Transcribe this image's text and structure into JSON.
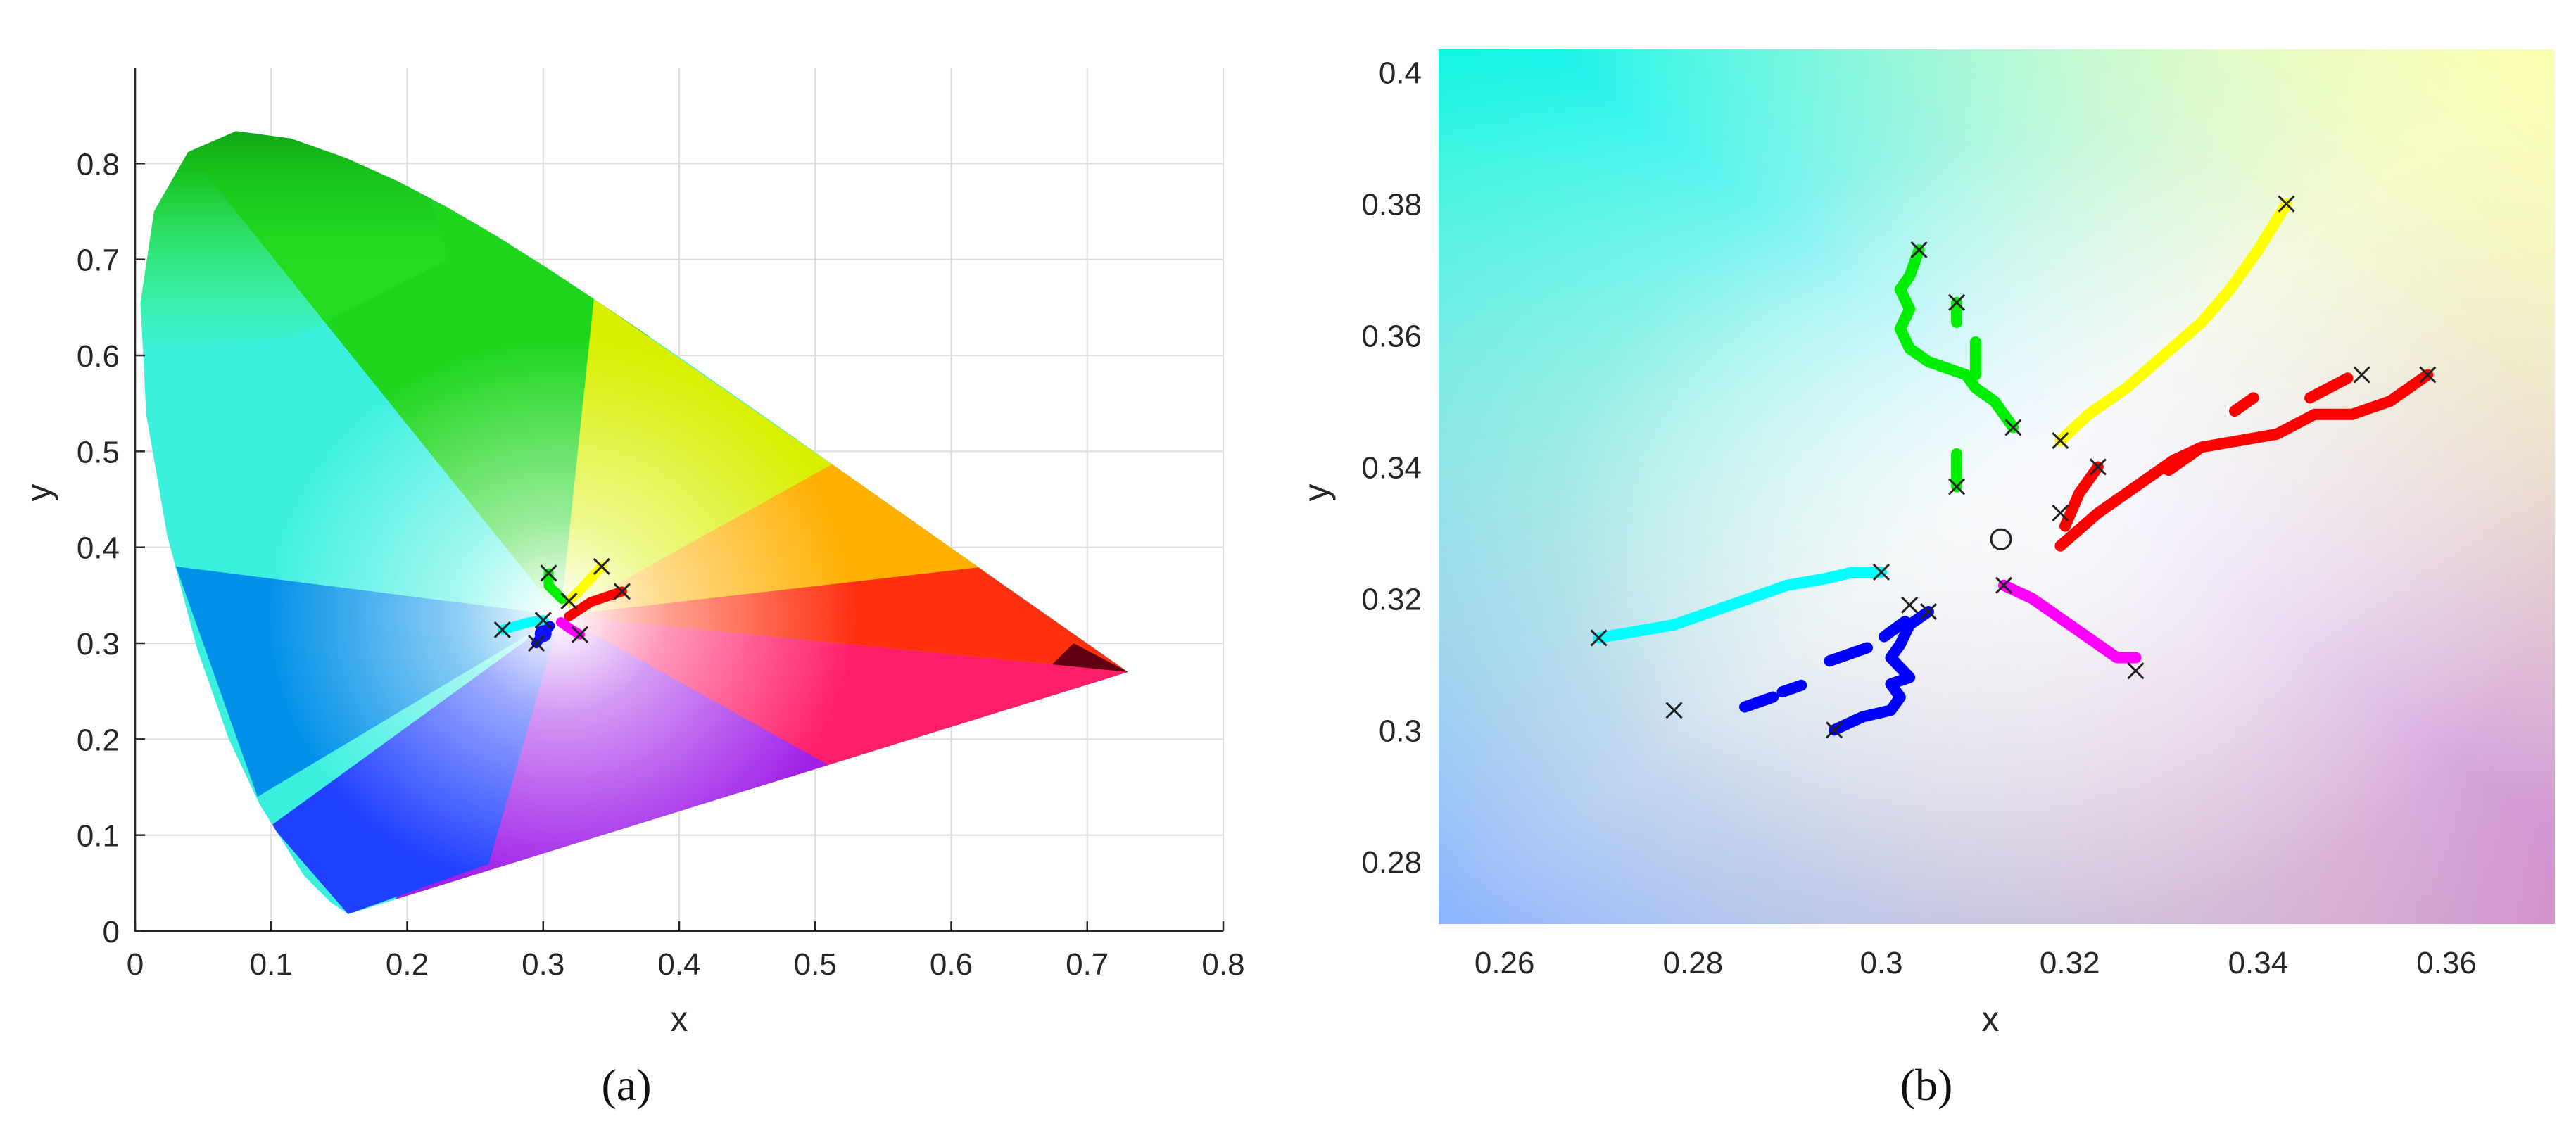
{
  "chart_data": [
    {
      "type": "scatter",
      "panel_label": "(a)",
      "xlabel": "x",
      "ylabel": "y",
      "xlim": [
        0,
        0.8
      ],
      "ylim": [
        0,
        0.9
      ],
      "xticks": [
        "0",
        "0.1",
        "0.2",
        "0.3",
        "0.4",
        "0.5",
        "0.6",
        "0.7",
        "0.8"
      ],
      "yticks": [
        "0",
        "0.1",
        "0.2",
        "0.3",
        "0.4",
        "0.5",
        "0.6",
        "0.7",
        "0.8"
      ],
      "grid": true,
      "background": "CIE 1931 chromaticity diagram (gamut fill)",
      "gamut_boundary": [
        [
          0.1566,
          0.0177
        ],
        [
          0.144,
          0.0297
        ],
        [
          0.1241,
          0.0578
        ],
        [
          0.0913,
          0.1327
        ],
        [
          0.0687,
          0.2007
        ],
        [
          0.0454,
          0.295
        ],
        [
          0.0235,
          0.4127
        ],
        [
          0.0082,
          0.5384
        ],
        [
          0.0039,
          0.6548
        ],
        [
          0.0139,
          0.7502
        ],
        [
          0.0389,
          0.812
        ],
        [
          0.0743,
          0.8338
        ],
        [
          0.1142,
          0.8262
        ],
        [
          0.1547,
          0.8059
        ],
        [
          0.1929,
          0.7816
        ],
        [
          0.2296,
          0.7543
        ],
        [
          0.2658,
          0.7243
        ],
        [
          0.3016,
          0.6923
        ],
        [
          0.3373,
          0.6589
        ],
        [
          0.3731,
          0.6245
        ],
        [
          0.4087,
          0.5896
        ],
        [
          0.4441,
          0.5547
        ],
        [
          0.4788,
          0.5202
        ],
        [
          0.5125,
          0.4866
        ],
        [
          0.5448,
          0.4544
        ],
        [
          0.5752,
          0.4242
        ],
        [
          0.6029,
          0.3965
        ],
        [
          0.627,
          0.3725
        ],
        [
          0.6482,
          0.3514
        ],
        [
          0.6658,
          0.334
        ],
        [
          0.6801,
          0.3197
        ],
        [
          0.6915,
          0.3083
        ],
        [
          0.7006,
          0.2993
        ],
        [
          0.7079,
          0.292
        ],
        [
          0.714,
          0.2859
        ],
        [
          0.719,
          0.2809
        ],
        [
          0.723,
          0.277
        ],
        [
          0.726,
          0.274
        ],
        [
          0.7283,
          0.2717
        ],
        [
          0.73,
          0.27
        ]
      ],
      "series": [
        {
          "color": "#ffff00",
          "points": [
            [
              0.319,
              0.344
            ],
            [
              0.33,
              0.36
            ],
            [
              0.343,
              0.38
            ]
          ]
        },
        {
          "color": "#ff0000",
          "points": [
            [
              0.319,
              0.328
            ],
            [
              0.335,
              0.343
            ],
            [
              0.358,
              0.354
            ]
          ]
        },
        {
          "color": "#00ee00",
          "points": [
            [
              0.304,
              0.373
            ],
            [
              0.304,
              0.36
            ],
            [
              0.314,
              0.346
            ]
          ]
        },
        {
          "color": "#00ffff",
          "points": [
            [
              0.27,
              0.314
            ],
            [
              0.29,
              0.322
            ],
            [
              0.3,
              0.324
            ]
          ]
        },
        {
          "color": "#0000ff",
          "points": [
            [
              0.295,
              0.3
            ],
            [
              0.3,
              0.31
            ],
            [
              0.305,
              0.318
            ]
          ]
        },
        {
          "color": "#ff00ff",
          "points": [
            [
              0.313,
              0.322
            ],
            [
              0.322,
              0.313
            ],
            [
              0.327,
              0.309
            ]
          ]
        }
      ],
      "markers": [
        [
          0.304,
          0.373
        ],
        [
          0.343,
          0.38
        ],
        [
          0.358,
          0.354
        ],
        [
          0.27,
          0.314
        ],
        [
          0.295,
          0.3
        ],
        [
          0.327,
          0.309
        ],
        [
          0.3,
          0.324
        ],
        [
          0.319,
          0.344
        ]
      ],
      "blue_dot": [
        0.3,
        0.31
      ]
    },
    {
      "type": "line",
      "panel_label": "(b)",
      "xlabel": "x",
      "ylabel": "y",
      "xlim": [
        0.253,
        0.3715
      ],
      "ylim": [
        0.2705,
        0.4035
      ],
      "xticks": [
        "0.26",
        "0.28",
        "0.3",
        "0.32",
        "0.34",
        "0.36"
      ],
      "xtick_values": [
        0.26,
        0.28,
        0.3,
        0.32,
        0.34,
        0.36
      ],
      "yticks": [
        "0.28",
        "0.3",
        "0.32",
        "0.34",
        "0.36",
        "0.38",
        "0.4"
      ],
      "ytick_values": [
        0.28,
        0.3,
        0.32,
        0.34,
        0.36,
        0.38,
        0.4
      ],
      "grid": false,
      "background": "chromaticity color field",
      "white_point": [
        0.3127,
        0.329
      ],
      "series": [
        {
          "color": "#ffff00",
          "segments": [
            [
              [
                0.319,
                0.344
              ],
              [
                0.322,
                0.348
              ],
              [
                0.326,
                0.352
              ],
              [
                0.33,
                0.357
              ],
              [
                0.334,
                0.362
              ],
              [
                0.337,
                0.367
              ],
              [
                0.34,
                0.373
              ],
              [
                0.343,
                0.38
              ]
            ]
          ]
        },
        {
          "color": "#ff0000",
          "segments": [
            [
              [
                0.319,
                0.328
              ],
              [
                0.323,
                0.333
              ],
              [
                0.327,
                0.337
              ],
              [
                0.331,
                0.341
              ],
              [
                0.334,
                0.343
              ],
              [
                0.338,
                0.344
              ],
              [
                0.342,
                0.345
              ],
              [
                0.346,
                0.348
              ],
              [
                0.35,
                0.348
              ],
              [
                0.354,
                0.35
              ],
              [
                0.358,
                0.354
              ]
            ],
            [
              [
                0.3195,
                0.331
              ],
              [
                0.321,
                0.336
              ],
              [
                0.323,
                0.34
              ]
            ],
            [
              [
                0.3305,
                0.3395
              ],
              [
                0.3335,
                0.3425
              ]
            ],
            [
              [
                0.3375,
                0.3485
              ],
              [
                0.3395,
                0.3505
              ]
            ],
            [
              [
                0.3455,
                0.3505
              ],
              [
                0.3495,
                0.3535
              ]
            ]
          ]
        },
        {
          "color": "#00ee00",
          "segments": [
            [
              [
                0.304,
                0.373
              ],
              [
                0.303,
                0.369
              ],
              [
                0.302,
                0.367
              ],
              [
                0.303,
                0.364
              ],
              [
                0.302,
                0.361
              ],
              [
                0.303,
                0.358
              ],
              [
                0.305,
                0.356
              ],
              [
                0.307,
                0.355
              ],
              [
                0.309,
                0.354
              ],
              [
                0.31,
                0.352
              ],
              [
                0.312,
                0.35
              ],
              [
                0.314,
                0.346
              ]
            ],
            [
              [
                0.308,
                0.365
              ],
              [
                0.308,
                0.362
              ]
            ],
            [
              [
                0.31,
                0.359
              ],
              [
                0.31,
                0.354
              ]
            ],
            [
              [
                0.308,
                0.342
              ],
              [
                0.308,
                0.337
              ]
            ]
          ]
        },
        {
          "color": "#00ffff",
          "segments": [
            [
              [
                0.27,
                0.314
              ],
              [
                0.274,
                0.315
              ],
              [
                0.278,
                0.316
              ],
              [
                0.282,
                0.318
              ],
              [
                0.286,
                0.32
              ],
              [
                0.29,
                0.322
              ],
              [
                0.294,
                0.323
              ],
              [
                0.297,
                0.324
              ],
              [
                0.3,
                0.324
              ]
            ]
          ]
        },
        {
          "color": "#0000ff",
          "segments": [
            [
              [
                0.295,
                0.3
              ],
              [
                0.298,
                0.302
              ],
              [
                0.301,
                0.303
              ],
              [
                0.302,
                0.305
              ],
              [
                0.301,
                0.307
              ],
              [
                0.303,
                0.308
              ],
              [
                0.301,
                0.311
              ],
              [
                0.302,
                0.313
              ],
              [
                0.303,
                0.316
              ],
              [
                0.305,
                0.318
              ]
            ],
            [
              [
                0.2945,
                0.3105
              ],
              [
                0.2985,
                0.3125
              ]
            ],
            [
              [
                0.3003,
                0.3142
              ],
              [
                0.3025,
                0.3165
              ]
            ],
            [
              [
                0.2855,
                0.3035
              ],
              [
                0.2885,
                0.305
              ]
            ],
            [
              [
                0.2895,
                0.3058
              ],
              [
                0.2915,
                0.3068
              ]
            ]
          ]
        },
        {
          "color": "#ff00ff",
          "segments": [
            [
              [
                0.313,
                0.322
              ],
              [
                0.316,
                0.32
              ],
              [
                0.319,
                0.317
              ],
              [
                0.321,
                0.315
              ],
              [
                0.323,
                0.313
              ],
              [
                0.325,
                0.311
              ],
              [
                0.327,
                0.311
              ]
            ]
          ]
        }
      ],
      "markers": [
        [
          0.343,
          0.38
        ],
        [
          0.304,
          0.373
        ],
        [
          0.308,
          0.365
        ],
        [
          0.351,
          0.354
        ],
        [
          0.358,
          0.354
        ],
        [
          0.314,
          0.346
        ],
        [
          0.319,
          0.344
        ],
        [
          0.323,
          0.34
        ],
        [
          0.308,
          0.337
        ],
        [
          0.319,
          0.333
        ],
        [
          0.3,
          0.324
        ],
        [
          0.313,
          0.322
        ],
        [
          0.303,
          0.319
        ],
        [
          0.305,
          0.318
        ],
        [
          0.27,
          0.314
        ],
        [
          0.327,
          0.309
        ],
        [
          0.278,
          0.303
        ],
        [
          0.295,
          0.3
        ]
      ]
    }
  ]
}
